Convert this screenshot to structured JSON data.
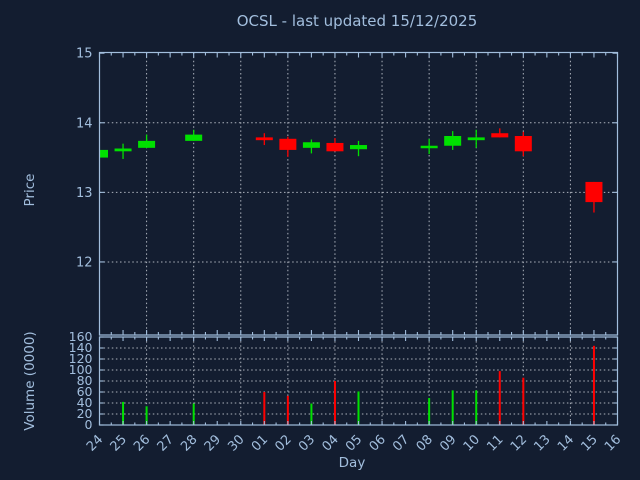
{
  "title": "OCSL - last updated 15/12/2025",
  "colors": {
    "background": "#131d30",
    "axis": "#a2bedd",
    "tick_label": "#a2bedd",
    "grid": "#c9ced6",
    "title": "#ffff00",
    "up": "#00e100",
    "down": "#ff0000"
  },
  "chart_data": [
    {
      "type": "candlestick",
      "title": "OCSL - last updated 15/12/2025",
      "xlabel": "Day",
      "ylabel": "Price",
      "x_categories": [
        "24",
        "25",
        "26",
        "27",
        "28",
        "29",
        "30",
        "01",
        "02",
        "03",
        "04",
        "05",
        "06",
        "07",
        "08",
        "09",
        "10",
        "11",
        "12",
        "13",
        "14",
        "15",
        "16"
      ],
      "y_ticks": [
        15,
        14,
        13,
        12
      ],
      "ylim": [
        10.95,
        15.01
      ],
      "grid": "dotted; vertical line every 2nd day starting at 26; horizontal at whole prices",
      "legend": "none",
      "candles": [
        {
          "day": "24",
          "open": 13.5,
          "high": 13.61,
          "low": 13.5,
          "close": 13.61
        },
        {
          "day": "25",
          "open": 13.59,
          "high": 13.7,
          "low": 13.48,
          "close": 13.63
        },
        {
          "day": "26",
          "open": 13.64,
          "high": 13.83,
          "low": 13.64,
          "close": 13.74
        },
        {
          "day": "28",
          "open": 13.74,
          "high": 13.9,
          "low": 13.74,
          "close": 13.83
        },
        {
          "day": "01",
          "open": 13.79,
          "high": 13.85,
          "low": 13.68,
          "close": 13.75
        },
        {
          "day": "02",
          "open": 13.77,
          "high": 13.8,
          "low": 13.51,
          "close": 13.61
        },
        {
          "day": "03",
          "open": 13.64,
          "high": 13.76,
          "low": 13.56,
          "close": 13.72
        },
        {
          "day": "04",
          "open": 13.71,
          "high": 13.78,
          "low": 13.59,
          "close": 13.59
        },
        {
          "day": "05",
          "open": 13.62,
          "high": 13.74,
          "low": 13.52,
          "close": 13.68
        },
        {
          "day": "08",
          "open": 13.64,
          "high": 13.77,
          "low": 13.55,
          "close": 13.67
        },
        {
          "day": "09",
          "open": 13.67,
          "high": 13.88,
          "low": 13.61,
          "close": 13.81
        },
        {
          "day": "10",
          "open": 13.75,
          "high": 13.9,
          "low": 13.64,
          "close": 13.79
        },
        {
          "day": "11",
          "open": 13.85,
          "high": 13.92,
          "low": 13.79,
          "close": 13.79
        },
        {
          "day": "12",
          "open": 13.81,
          "high": 13.87,
          "low": 13.52,
          "close": 13.59
        },
        {
          "day": "15",
          "open": 13.15,
          "high": 13.15,
          "low": 12.71,
          "close": 12.86
        }
      ]
    },
    {
      "type": "bar",
      "xlabel": "Day",
      "ylabel": "Volume (0000)",
      "y_ticks": [
        160,
        140,
        120,
        100,
        80,
        60,
        40,
        20,
        0
      ],
      "ylim": [
        0,
        160
      ],
      "bars": [
        {
          "day": "25",
          "value": 42,
          "direction": "up"
        },
        {
          "day": "26",
          "value": 34,
          "direction": "up"
        },
        {
          "day": "28",
          "value": 39,
          "direction": "up"
        },
        {
          "day": "01",
          "value": 60,
          "direction": "down"
        },
        {
          "day": "02",
          "value": 53,
          "direction": "down"
        },
        {
          "day": "03",
          "value": 39,
          "direction": "up"
        },
        {
          "day": "04",
          "value": 80,
          "direction": "down"
        },
        {
          "day": "05",
          "value": 61,
          "direction": "up"
        },
        {
          "day": "08",
          "value": 49,
          "direction": "up"
        },
        {
          "day": "09",
          "value": 63,
          "direction": "up"
        },
        {
          "day": "10",
          "value": 63,
          "direction": "up"
        },
        {
          "day": "11",
          "value": 98,
          "direction": "down"
        },
        {
          "day": "12",
          "value": 86,
          "direction": "down"
        },
        {
          "day": "15",
          "value": 144,
          "direction": "down"
        }
      ]
    }
  ]
}
